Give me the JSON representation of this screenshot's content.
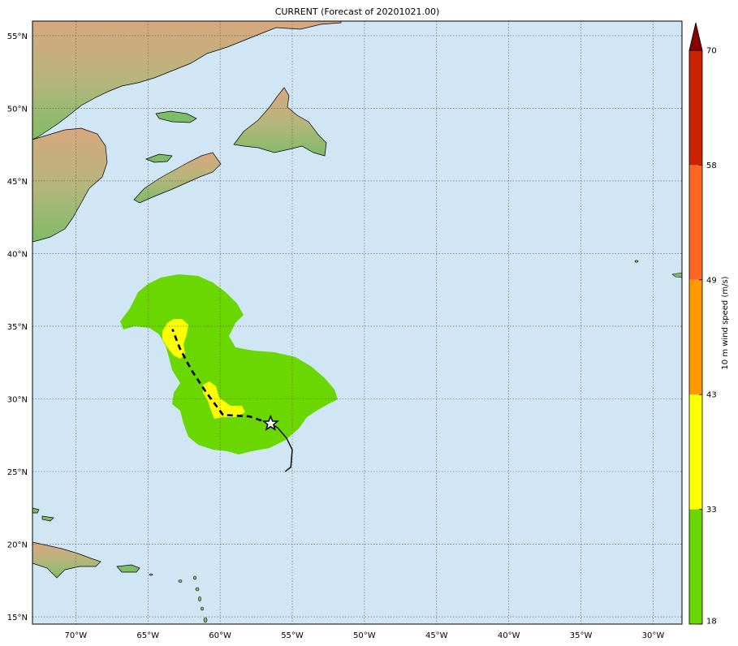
{
  "figure": {
    "title": "CURRENT (Forecast of 20201021.00)"
  },
  "map": {
    "longitude_range": [
      -73,
      -28
    ],
    "latitude_range": [
      14.5,
      56
    ],
    "longitude_ticks": [
      "70°W",
      "65°W",
      "60°W",
      "55°W",
      "50°W",
      "45°W",
      "40°W",
      "35°W",
      "30°W"
    ],
    "longitude_tick_values": [
      -70,
      -65,
      -60,
      -55,
      -50,
      -45,
      -40,
      -35,
      -30
    ],
    "latitude_ticks": [
      "55°N",
      "50°N",
      "45°N",
      "40°N",
      "35°N",
      "30°N",
      "25°N",
      "20°N",
      "15°N"
    ],
    "latitude_tick_values": [
      55,
      50,
      45,
      40,
      35,
      30,
      25,
      20,
      15
    ],
    "grid": true,
    "colors": {
      "ocean": "#d0e6f5",
      "land_low": "#7cb86a",
      "land_high": "#d4a77c",
      "wind_18_33": "#6ad800",
      "wind_33_43": "#ffff00"
    }
  },
  "storm": {
    "current_position": {
      "lon": -56.5,
      "lat": 28.3
    },
    "past_track": [
      {
        "lon": -55.5,
        "lat": 25.0
      },
      {
        "lon": -55.1,
        "lat": 25.3
      },
      {
        "lon": -55.0,
        "lat": 26.5
      },
      {
        "lon": -55.4,
        "lat": 27.3
      },
      {
        "lon": -56.0,
        "lat": 28.0
      },
      {
        "lon": -56.5,
        "lat": 28.3
      }
    ],
    "forecast_track": [
      {
        "lon": -56.5,
        "lat": 28.3
      },
      {
        "lon": -58.0,
        "lat": 28.8
      },
      {
        "lon": -59.8,
        "lat": 28.9
      },
      {
        "lon": -61.0,
        "lat": 30.5
      },
      {
        "lon": -62.0,
        "lat": 32.0
      },
      {
        "lon": -62.8,
        "lat": 33.5
      },
      {
        "lon": -63.3,
        "lat": 34.8
      }
    ]
  },
  "colorbar": {
    "label": "10 m wind speed (m/s)",
    "ticks": [
      "18",
      "33",
      "43",
      "49",
      "58",
      "70"
    ],
    "levels": [
      18,
      33,
      43,
      49,
      58,
      70
    ],
    "colors": [
      "#6ad800",
      "#ffff00",
      "#ff9900",
      "#ff6622",
      "#cc2200"
    ],
    "extend_color": "#8b0000"
  }
}
